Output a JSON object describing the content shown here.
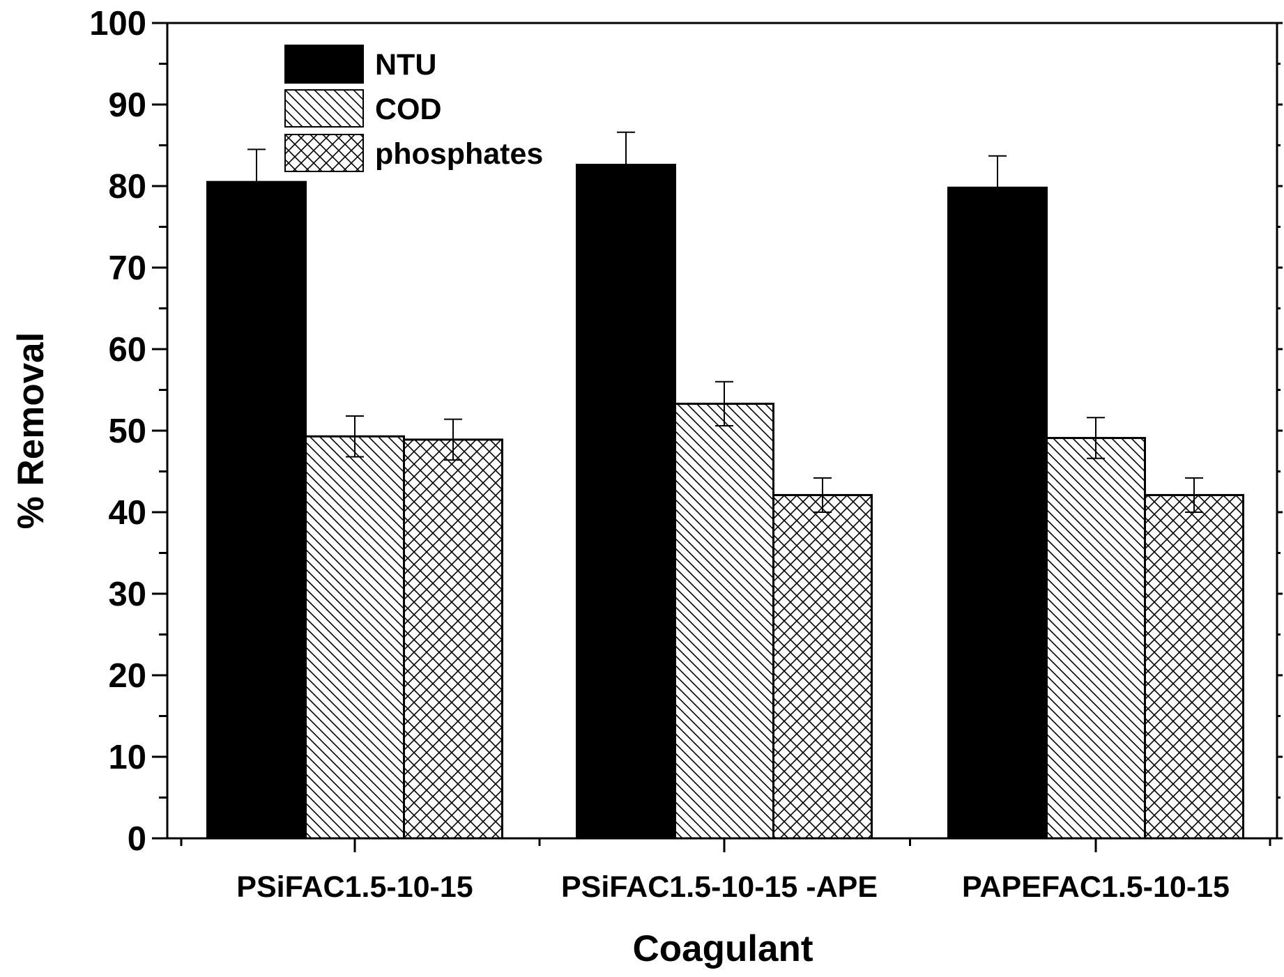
{
  "chart_data": {
    "type": "bar",
    "title": "",
    "xlabel": "Coagulant",
    "ylabel": "% Removal",
    "ylim": [
      0,
      100
    ],
    "yticks": [
      "0",
      "10",
      "20",
      "30",
      "40",
      "50",
      "60",
      "70",
      "80",
      "90",
      "100"
    ],
    "categories": [
      "PSiFAC1.5-10-15",
      "PSiFAC1.5-10-15 -APE",
      "PAPEFAC1.5-10-15"
    ],
    "series": [
      {
        "name": "NTU",
        "fill": "solid",
        "values": [
          80.5,
          82.6,
          79.8
        ],
        "errors": [
          4.0,
          4.0,
          3.9
        ]
      },
      {
        "name": "COD",
        "fill": "diagonal-hatch",
        "values": [
          49.3,
          53.3,
          49.1
        ],
        "errors": [
          2.5,
          2.7,
          2.5
        ]
      },
      {
        "name": "phosphates",
        "fill": "cross-hatch",
        "values": [
          48.9,
          42.1,
          42.1
        ],
        "errors": [
          2.5,
          2.1,
          2.1
        ]
      }
    ],
    "legend_position": "top-left",
    "colors": {
      "bar_stroke": "#000000",
      "solid_fill": "#000000",
      "background": "#ffffff"
    }
  }
}
